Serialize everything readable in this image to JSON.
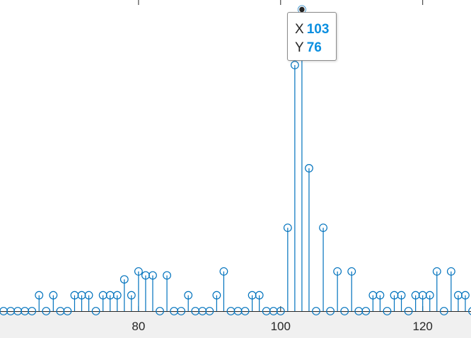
{
  "chart_data": {
    "type": "stem",
    "title": "",
    "xlabel": "",
    "ylabel": "",
    "xlim": [
      60.5,
      126.8
    ],
    "ylim": [
      0,
      77.5
    ],
    "x_ticks": [
      80,
      100,
      120
    ],
    "x_tick_labels": [
      "80",
      "100",
      "120"
    ],
    "series": [
      {
        "color": "#0072bd",
        "marker": "circle",
        "x": [
          60,
          61,
          62,
          63,
          64,
          65,
          66,
          67,
          68,
          69,
          70,
          71,
          72,
          73,
          74,
          75,
          76,
          77,
          78,
          79,
          80,
          81,
          82,
          83,
          84,
          85,
          86,
          87,
          88,
          89,
          90,
          91,
          92,
          93,
          94,
          95,
          96,
          97,
          98,
          99,
          100,
          101,
          102,
          103,
          104,
          105,
          106,
          107,
          108,
          109,
          110,
          111,
          112,
          113,
          114,
          115,
          116,
          117,
          118,
          119,
          120,
          121,
          122,
          123,
          124,
          125,
          126,
          127
        ],
        "y": [
          0,
          0,
          0,
          0,
          0,
          0,
          4,
          0,
          4,
          0,
          0,
          4,
          4,
          4,
          0,
          4,
          4,
          4,
          8,
          4,
          10,
          9,
          9,
          0,
          9,
          0,
          0,
          4,
          0,
          0,
          0,
          4,
          10,
          0,
          0,
          0,
          4,
          4,
          0,
          0,
          0,
          21,
          62,
          76,
          36,
          0,
          21,
          0,
          10,
          0,
          10,
          0,
          0,
          4,
          4,
          0,
          4,
          4,
          0,
          4,
          4,
          4,
          10,
          0,
          10,
          4,
          4,
          0
        ]
      }
    ]
  },
  "datatip": {
    "x_label": "X",
    "x_value": "103",
    "y_label": "Y",
    "y_value": "76"
  }
}
